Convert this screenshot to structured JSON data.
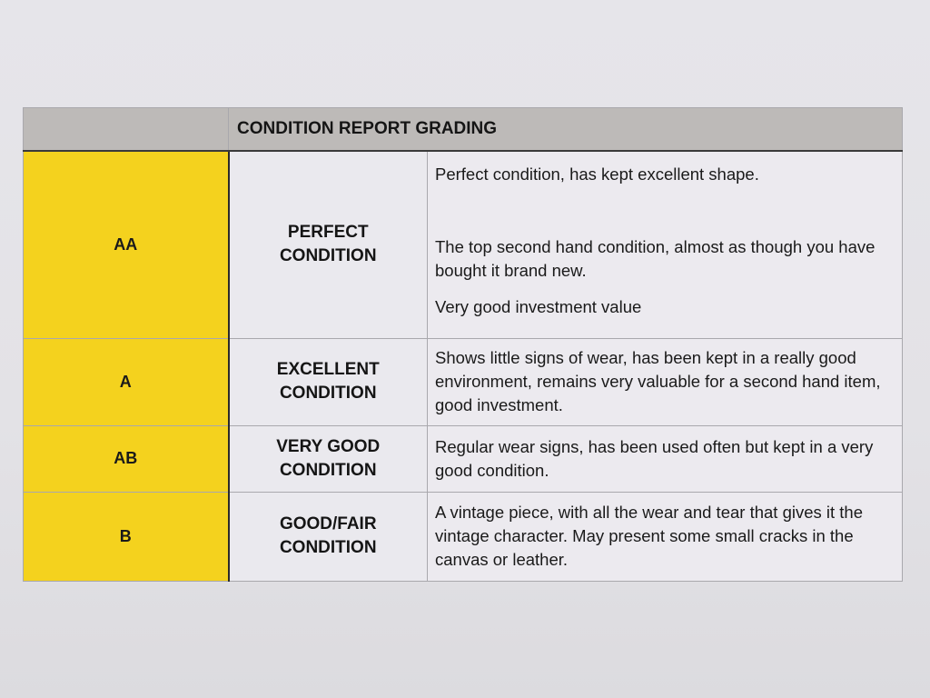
{
  "title": "CONDITION REPORT GRADING",
  "colors": {
    "grade_fill": "#f4d21e",
    "header_fill": "#bdbab8"
  },
  "rows": [
    {
      "grade": "AA",
      "condition": [
        "PERFECT",
        "CONDITION"
      ],
      "description": [
        "Perfect condition, has kept excellent shape.",
        "The top second hand condition, almost as though you have bought it brand new.",
        "Very good investment value"
      ]
    },
    {
      "grade": "A",
      "condition": [
        "EXCELLENT",
        "CONDITION"
      ],
      "description": [
        "Shows little signs of wear, has been kept in a really good environment, remains very valuable for a second hand item, good investment."
      ]
    },
    {
      "grade": "AB",
      "condition": [
        "VERY GOOD",
        "CONDITION"
      ],
      "description": [
        "Regular wear signs, has been used often but kept in a very good condition."
      ]
    },
    {
      "grade": "B",
      "condition": [
        "GOOD/FAIR",
        "CONDITION"
      ],
      "description": [
        "A vintage piece, with all the wear and tear that gives it the vintage character. May present some small cracks in the canvas or leather."
      ]
    }
  ]
}
